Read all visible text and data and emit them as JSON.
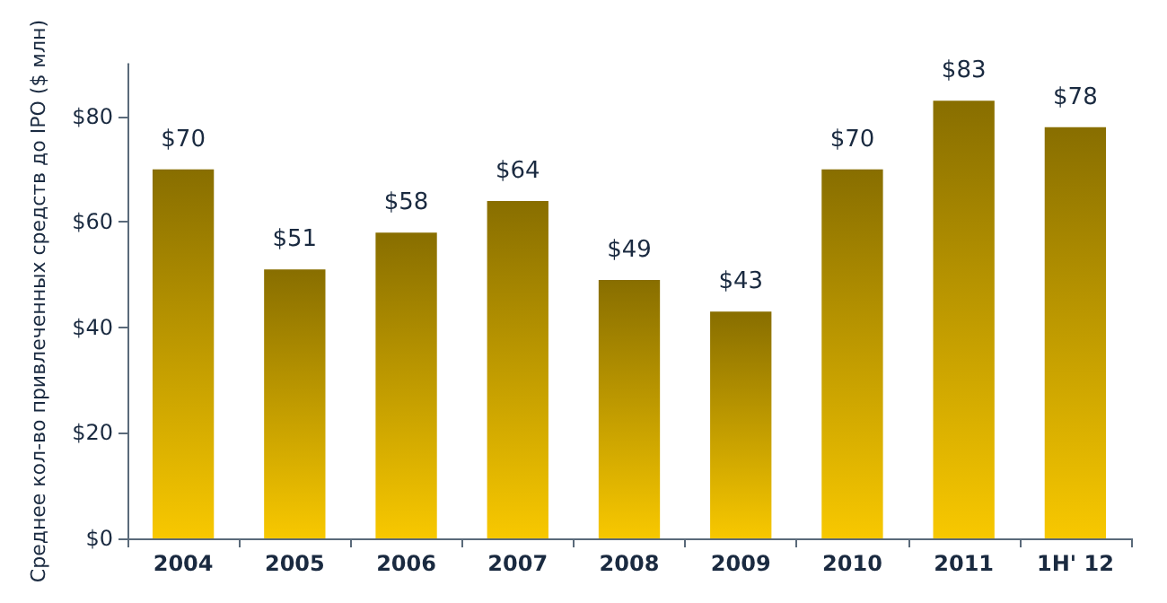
{
  "chart_data": {
    "type": "bar",
    "ylabel": "Среднее кол-во привлеченных средств до IPO ($ млн)",
    "categories": [
      "2004",
      "2005",
      "2006",
      "2007",
      "2008",
      "2009",
      "2010",
      "2011",
      "1H' 12"
    ],
    "values": [
      70,
      51,
      58,
      64,
      49,
      43,
      70,
      83,
      78
    ],
    "value_labels": [
      "$70",
      "$51",
      "$58",
      "$64",
      "$49",
      "$43",
      "$70",
      "$83",
      "$78"
    ],
    "color": "#f8c800",
    "ylim": [
      0,
      90
    ],
    "yticks": [
      {
        "value": 0,
        "label": "$0"
      },
      {
        "value": 20,
        "label": "$20"
      },
      {
        "value": 40,
        "label": "$40"
      },
      {
        "value": 60,
        "label": "$60"
      },
      {
        "value": 80,
        "label": "$80"
      }
    ],
    "grid": false
  }
}
